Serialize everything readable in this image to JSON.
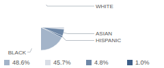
{
  "chart_data": {
    "type": "pie",
    "categories": [
      "BLACK",
      "WHITE",
      "ASIAN",
      "HISPANIC"
    ],
    "values": [
      48.6,
      45.7,
      4.8,
      1.0
    ],
    "value_labels": [
      "48.6%",
      "45.7%",
      "4.8%",
      "1.0%"
    ],
    "colors": [
      "#a3b4c9",
      "#d9dee6",
      "#6f88a7",
      "#3e5f88"
    ],
    "legend": "bottom"
  }
}
